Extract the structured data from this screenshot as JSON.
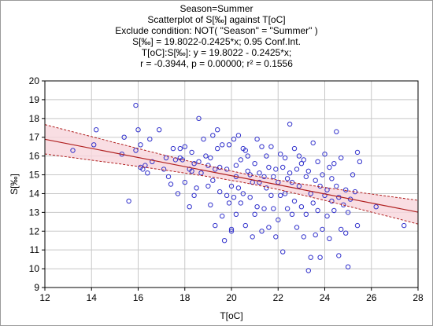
{
  "header": {
    "lines": [
      "Season=Summer",
      "Scatterplot of S[‰] against T[oC]",
      "Exclude condition: NOT( \"Season\" = \"Summer\" )",
      "S[‰] = 19.8022-0.2425*x; 0.95 Conf.Int.",
      "T[oC]:S[‰]:   y = 19.8022 - 0.2425*x;",
      "r = -0.3944, p = 0.00000; r² = 0.1556"
    ]
  },
  "chart_data": {
    "type": "scatter",
    "xlabel": "T[oC]",
    "ylabel": "S[‰]",
    "xlim": [
      12,
      28
    ],
    "ylim": [
      9,
      20
    ],
    "xticks": [
      12,
      14,
      16,
      18,
      20,
      22,
      24,
      26,
      28
    ],
    "yticks": [
      9,
      10,
      11,
      12,
      13,
      14,
      15,
      16,
      17,
      18,
      19,
      20
    ],
    "grid": true,
    "colors": {
      "points": "#3333cc",
      "fit_line": "#b02020",
      "conf_band": "#f7d6dc",
      "grid": "#c8c8c8"
    },
    "regression": {
      "intercept": 19.8022,
      "slope": -0.2425,
      "confidence": 0.95
    },
    "points": [
      [
        13.2,
        16.3
      ],
      [
        14.1,
        16.6
      ],
      [
        14.2,
        17.4
      ],
      [
        15.3,
        16.1
      ],
      [
        15.4,
        17.0
      ],
      [
        15.6,
        13.6
      ],
      [
        15.9,
        16.3
      ],
      [
        15.9,
        18.7
      ],
      [
        16.0,
        17.4
      ],
      [
        16.1,
        15.4
      ],
      [
        16.1,
        16.6
      ],
      [
        16.2,
        15.3
      ],
      [
        16.3,
        15.5
      ],
      [
        16.4,
        15.1
      ],
      [
        16.5,
        16.9
      ],
      [
        16.6,
        15.7
      ],
      [
        16.9,
        17.4
      ],
      [
        17.1,
        15.3
      ],
      [
        17.2,
        15.9
      ],
      [
        17.3,
        14.9
      ],
      [
        17.4,
        14.5
      ],
      [
        17.5,
        16.4
      ],
      [
        17.6,
        15.8
      ],
      [
        17.7,
        14.0
      ],
      [
        17.8,
        15.9
      ],
      [
        17.8,
        16.4
      ],
      [
        17.9,
        15.8
      ],
      [
        18.0,
        14.6
      ],
      [
        18.0,
        16.5
      ],
      [
        18.2,
        13.3
      ],
      [
        18.2,
        15.3
      ],
      [
        18.3,
        15.2
      ],
      [
        18.3,
        16.2
      ],
      [
        18.4,
        15.6
      ],
      [
        18.4,
        13.9
      ],
      [
        18.5,
        14.3
      ],
      [
        18.6,
        18.0
      ],
      [
        18.6,
        15.7
      ],
      [
        18.7,
        15.1
      ],
      [
        18.8,
        16.9
      ],
      [
        18.9,
        16.0
      ],
      [
        19.0,
        15.5
      ],
      [
        19.0,
        14.4
      ],
      [
        19.1,
        13.4
      ],
      [
        19.1,
        15.9
      ],
      [
        19.2,
        14.7
      ],
      [
        19.2,
        17.1
      ],
      [
        19.3,
        12.3
      ],
      [
        19.3,
        15.3
      ],
      [
        19.4,
        16.4
      ],
      [
        19.4,
        17.4
      ],
      [
        19.5,
        15.4
      ],
      [
        19.5,
        14.1
      ],
      [
        19.6,
        12.8
      ],
      [
        19.6,
        16.6
      ],
      [
        19.7,
        11.5
      ],
      [
        19.8,
        13.9
      ],
      [
        19.8,
        15.3
      ],
      [
        19.9,
        16.6
      ],
      [
        19.9,
        13.5
      ],
      [
        20.0,
        12.1
      ],
      [
        20.0,
        12.0
      ],
      [
        20.0,
        14.4
      ],
      [
        20.1,
        13.8
      ],
      [
        20.1,
        16.9
      ],
      [
        20.2,
        14.9
      ],
      [
        20.2,
        15.5
      ],
      [
        20.2,
        12.9
      ],
      [
        20.3,
        14.3
      ],
      [
        20.3,
        17.1
      ],
      [
        20.4,
        13.5
      ],
      [
        20.4,
        15.8
      ],
      [
        20.5,
        16.4
      ],
      [
        20.5,
        14.0
      ],
      [
        20.6,
        16.3
      ],
      [
        20.6,
        12.3
      ],
      [
        20.7,
        15.2
      ],
      [
        20.7,
        16.0
      ],
      [
        20.8,
        13.8
      ],
      [
        20.8,
        15.0
      ],
      [
        20.9,
        14.6
      ],
      [
        20.9,
        11.7
      ],
      [
        21.0,
        15.6
      ],
      [
        21.0,
        12.9
      ],
      [
        21.1,
        13.3
      ],
      [
        21.1,
        16.9
      ],
      [
        21.2,
        14.6
      ],
      [
        21.2,
        15.1
      ],
      [
        21.3,
        12.0
      ],
      [
        21.3,
        16.5
      ],
      [
        21.4,
        14.9
      ],
      [
        21.4,
        13.2
      ],
      [
        21.5,
        16.0
      ],
      [
        21.5,
        14.3
      ],
      [
        21.6,
        12.2
      ],
      [
        21.6,
        15.4
      ],
      [
        21.7,
        13.9
      ],
      [
        21.7,
        16.5
      ],
      [
        21.8,
        14.9
      ],
      [
        21.8,
        13.2
      ],
      [
        21.9,
        11.7
      ],
      [
        21.9,
        15.3
      ],
      [
        22.0,
        14.6
      ],
      [
        22.0,
        12.6
      ],
      [
        22.1,
        16.1
      ],
      [
        22.1,
        13.9
      ],
      [
        22.2,
        15.4
      ],
      [
        22.2,
        10.9
      ],
      [
        22.3,
        14.0
      ],
      [
        22.3,
        15.9
      ],
      [
        22.4,
        13.2
      ],
      [
        22.4,
        14.8
      ],
      [
        22.5,
        17.7
      ],
      [
        22.5,
        15.1
      ],
      [
        22.6,
        12.9
      ],
      [
        22.6,
        14.6
      ],
      [
        22.7,
        16.4
      ],
      [
        22.7,
        13.6
      ],
      [
        22.8,
        15.3
      ],
      [
        22.8,
        12.2
      ],
      [
        22.9,
        16.0
      ],
      [
        22.9,
        14.4
      ],
      [
        23.0,
        13.3
      ],
      [
        23.0,
        15.6
      ],
      [
        23.1,
        15.8
      ],
      [
        23.1,
        11.7
      ],
      [
        23.2,
        14.9
      ],
      [
        23.2,
        12.9
      ],
      [
        23.3,
        9.9
      ],
      [
        23.3,
        15.2
      ],
      [
        23.4,
        14.0
      ],
      [
        23.4,
        10.6
      ],
      [
        23.5,
        13.5
      ],
      [
        23.5,
        16.7
      ],
      [
        23.6,
        14.7
      ],
      [
        23.6,
        11.8
      ],
      [
        23.7,
        15.7
      ],
      [
        23.7,
        13.1
      ],
      [
        23.8,
        14.4
      ],
      [
        23.8,
        10.6
      ],
      [
        23.9,
        15.0
      ],
      [
        23.9,
        12.1
      ],
      [
        24.0,
        16.1
      ],
      [
        24.0,
        13.9
      ],
      [
        24.1,
        14.2
      ],
      [
        24.1,
        12.8
      ],
      [
        24.2,
        15.4
      ],
      [
        24.2,
        11.6
      ],
      [
        24.3,
        13.6
      ],
      [
        24.3,
        14.8
      ],
      [
        24.4,
        15.6
      ],
      [
        24.4,
        13.1
      ],
      [
        24.5,
        14.4
      ],
      [
        24.5,
        17.3
      ],
      [
        24.6,
        10.7
      ],
      [
        24.6,
        13.8
      ],
      [
        24.7,
        12.1
      ],
      [
        24.7,
        15.9
      ],
      [
        24.8,
        13.4
      ],
      [
        24.9,
        14.2
      ],
      [
        24.9,
        11.9
      ],
      [
        25.0,
        13.0
      ],
      [
        25.0,
        10.1
      ],
      [
        25.1,
        13.7
      ],
      [
        25.2,
        15.0
      ],
      [
        25.3,
        14.1
      ],
      [
        25.4,
        16.2
      ],
      [
        25.4,
        12.3
      ],
      [
        25.5,
        15.7
      ],
      [
        26.2,
        13.3
      ],
      [
        27.4,
        12.3
      ]
    ]
  }
}
